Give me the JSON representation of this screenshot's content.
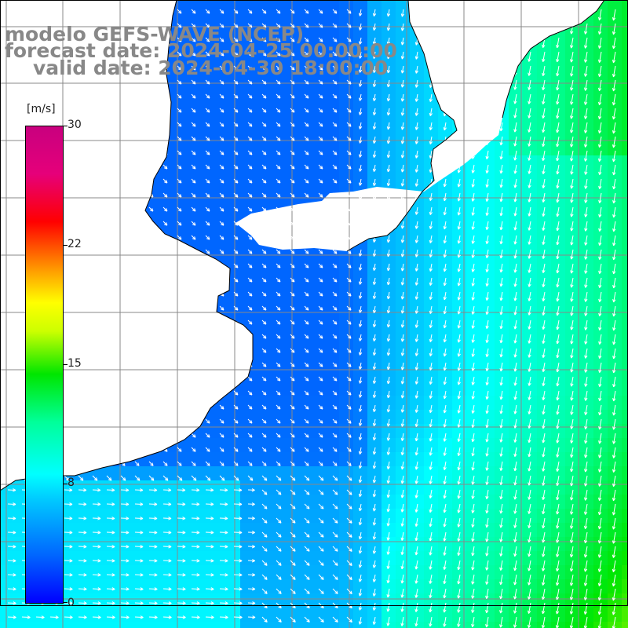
{
  "title": {
    "line1": "modelo GEFS-WAVE (NCEP)",
    "line2": "forecast date: 2024-04-25 00:00:00",
    "line3": "valid date: 2024-04-30 18:00:00"
  },
  "colorbar": {
    "unit": "[m/s]",
    "ticks": [
      "30",
      "22",
      "15",
      "8",
      "0"
    ],
    "min": 0,
    "max": 30,
    "colors": [
      "#0000ff",
      "#0066ff",
      "#00ccff",
      "#00ffff",
      "#00ff99",
      "#00e600",
      "#ccff00",
      "#ffff00",
      "#ff9900",
      "#ff0000",
      "#c8007f"
    ]
  },
  "map": {
    "field": "wind speed",
    "grid_color": "#888888",
    "coast_color": "#000000",
    "land_color": "#ffffff",
    "arrow_color": "#ffffff"
  }
}
